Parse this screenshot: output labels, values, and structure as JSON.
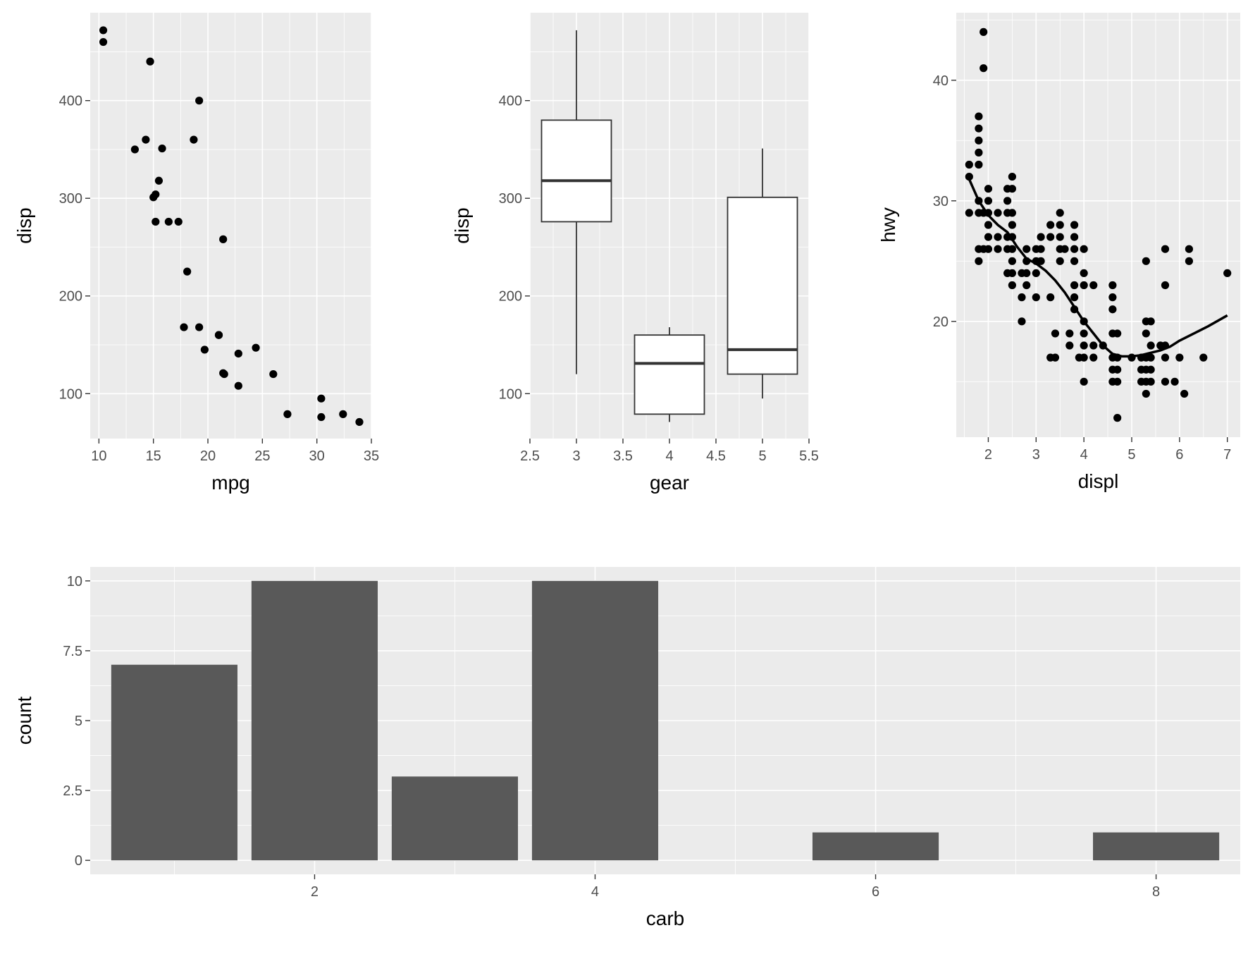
{
  "chart_data": [
    {
      "id": "p1",
      "type": "scatter",
      "title": "",
      "xlabel": "mpg",
      "ylabel": "disp",
      "xlim": [
        9.2,
        35.0
      ],
      "ylim": [
        54,
        490
      ],
      "xticks": [
        10,
        15,
        20,
        25,
        30,
        35
      ],
      "xtick_labels": [
        "10",
        "15",
        "20",
        "25",
        "30",
        "35"
      ],
      "yticks": [
        100,
        200,
        300,
        400
      ],
      "ytick_labels": [
        "100",
        "200",
        "300",
        "400"
      ],
      "grid": true,
      "points": [
        {
          "x": 10.4,
          "y": 472
        },
        {
          "x": 10.4,
          "y": 460
        },
        {
          "x": 14.7,
          "y": 440
        },
        {
          "x": 19.2,
          "y": 400
        },
        {
          "x": 13.3,
          "y": 350
        },
        {
          "x": 15.8,
          "y": 351
        },
        {
          "x": 14.3,
          "y": 360
        },
        {
          "x": 18.7,
          "y": 360
        },
        {
          "x": 15.5,
          "y": 318
        },
        {
          "x": 15.2,
          "y": 304
        },
        {
          "x": 15.0,
          "y": 301
        },
        {
          "x": 15.2,
          "y": 276
        },
        {
          "x": 16.4,
          "y": 276
        },
        {
          "x": 17.3,
          "y": 276
        },
        {
          "x": 21.4,
          "y": 258
        },
        {
          "x": 18.1,
          "y": 225
        },
        {
          "x": 17.8,
          "y": 168
        },
        {
          "x": 19.2,
          "y": 168
        },
        {
          "x": 21.0,
          "y": 160
        },
        {
          "x": 21.0,
          "y": 160
        },
        {
          "x": 19.7,
          "y": 145
        },
        {
          "x": 22.8,
          "y": 141
        },
        {
          "x": 24.4,
          "y": 147
        },
        {
          "x": 21.4,
          "y": 121
        },
        {
          "x": 21.5,
          "y": 120
        },
        {
          "x": 26.0,
          "y": 120
        },
        {
          "x": 22.8,
          "y": 108
        },
        {
          "x": 30.4,
          "y": 95
        },
        {
          "x": 27.3,
          "y": 79
        },
        {
          "x": 32.4,
          "y": 79
        },
        {
          "x": 30.4,
          "y": 76
        },
        {
          "x": 33.9,
          "y": 71
        }
      ]
    },
    {
      "id": "p2",
      "type": "box",
      "title": "",
      "xlabel": "gear",
      "ylabel": "disp",
      "xlim": [
        2.5,
        5.5
      ],
      "ylim": [
        54,
        490
      ],
      "xticks": [
        2.5,
        3,
        3.5,
        4,
        4.5,
        5,
        5.5
      ],
      "xtick_labels": [
        "2.5",
        "3",
        "3.5",
        "4",
        "4.5",
        "5",
        "5.5"
      ],
      "yticks": [
        100,
        200,
        300,
        400
      ],
      "ytick_labels": [
        "100",
        "200",
        "300",
        "400"
      ],
      "grid": true,
      "boxes": [
        {
          "x": 3,
          "width": 0.75,
          "min": 120,
          "q1": 276,
          "median": 318,
          "q3": 380,
          "max": 472
        },
        {
          "x": 4,
          "width": 0.75,
          "min": 71,
          "q1": 79,
          "median": 131,
          "q3": 160,
          "max": 168
        },
        {
          "x": 5,
          "width": 0.75,
          "min": 95,
          "q1": 120,
          "median": 145,
          "q3": 301,
          "max": 351
        }
      ]
    },
    {
      "id": "p3",
      "type": "scatter",
      "title": "",
      "xlabel": "displ",
      "ylabel": "hwy",
      "xlim": [
        1.33,
        7.27
      ],
      "ylim": [
        10.4,
        45.6
      ],
      "xticks": [
        2,
        3,
        4,
        5,
        6,
        7
      ],
      "xtick_labels": [
        "2",
        "3",
        "4",
        "5",
        "6",
        "7"
      ],
      "yticks": [
        20,
        30,
        40
      ],
      "ytick_labels": [
        "20",
        "30",
        "40"
      ],
      "grid": true,
      "points": [
        {
          "x": 1.6,
          "y": 33
        },
        {
          "x": 1.6,
          "y": 32
        },
        {
          "x": 1.6,
          "y": 29
        },
        {
          "x": 1.8,
          "y": 37
        },
        {
          "x": 1.8,
          "y": 36
        },
        {
          "x": 1.8,
          "y": 35
        },
        {
          "x": 1.8,
          "y": 34
        },
        {
          "x": 1.8,
          "y": 33
        },
        {
          "x": 1.8,
          "y": 30
        },
        {
          "x": 1.8,
          "y": 29
        },
        {
          "x": 1.8,
          "y": 26
        },
        {
          "x": 1.8,
          "y": 25
        },
        {
          "x": 1.9,
          "y": 44
        },
        {
          "x": 1.9,
          "y": 41
        },
        {
          "x": 1.9,
          "y": 29
        },
        {
          "x": 1.9,
          "y": 26
        },
        {
          "x": 2.0,
          "y": 31
        },
        {
          "x": 2.0,
          "y": 30
        },
        {
          "x": 2.0,
          "y": 29
        },
        {
          "x": 2.0,
          "y": 28
        },
        {
          "x": 2.0,
          "y": 27
        },
        {
          "x": 2.0,
          "y": 26
        },
        {
          "x": 2.2,
          "y": 29
        },
        {
          "x": 2.2,
          "y": 27
        },
        {
          "x": 2.2,
          "y": 26
        },
        {
          "x": 2.4,
          "y": 31
        },
        {
          "x": 2.4,
          "y": 30
        },
        {
          "x": 2.4,
          "y": 29
        },
        {
          "x": 2.4,
          "y": 27
        },
        {
          "x": 2.4,
          "y": 26
        },
        {
          "x": 2.4,
          "y": 24
        },
        {
          "x": 2.5,
          "y": 32
        },
        {
          "x": 2.5,
          "y": 31
        },
        {
          "x": 2.5,
          "y": 29
        },
        {
          "x": 2.5,
          "y": 28
        },
        {
          "x": 2.5,
          "y": 27
        },
        {
          "x": 2.5,
          "y": 26
        },
        {
          "x": 2.5,
          "y": 25
        },
        {
          "x": 2.5,
          "y": 24
        },
        {
          "x": 2.5,
          "y": 23
        },
        {
          "x": 2.7,
          "y": 24
        },
        {
          "x": 2.7,
          "y": 22
        },
        {
          "x": 2.7,
          "y": 20
        },
        {
          "x": 2.8,
          "y": 26
        },
        {
          "x": 2.8,
          "y": 25
        },
        {
          "x": 2.8,
          "y": 24
        },
        {
          "x": 2.8,
          "y": 23
        },
        {
          "x": 3.0,
          "y": 26
        },
        {
          "x": 3.0,
          "y": 25
        },
        {
          "x": 3.0,
          "y": 24
        },
        {
          "x": 3.0,
          "y": 22
        },
        {
          "x": 3.1,
          "y": 27
        },
        {
          "x": 3.1,
          "y": 26
        },
        {
          "x": 3.1,
          "y": 25
        },
        {
          "x": 3.3,
          "y": 28
        },
        {
          "x": 3.3,
          "y": 27
        },
        {
          "x": 3.3,
          "y": 22
        },
        {
          "x": 3.3,
          "y": 17
        },
        {
          "x": 3.4,
          "y": 19
        },
        {
          "x": 3.4,
          "y": 17
        },
        {
          "x": 3.5,
          "y": 29
        },
        {
          "x": 3.5,
          "y": 28
        },
        {
          "x": 3.5,
          "y": 27
        },
        {
          "x": 3.5,
          "y": 26
        },
        {
          "x": 3.5,
          "y": 25
        },
        {
          "x": 3.6,
          "y": 26
        },
        {
          "x": 3.7,
          "y": 19
        },
        {
          "x": 3.7,
          "y": 18
        },
        {
          "x": 3.8,
          "y": 28
        },
        {
          "x": 3.8,
          "y": 27
        },
        {
          "x": 3.8,
          "y": 26
        },
        {
          "x": 3.8,
          "y": 25
        },
        {
          "x": 3.8,
          "y": 23
        },
        {
          "x": 3.8,
          "y": 22
        },
        {
          "x": 3.8,
          "y": 21
        },
        {
          "x": 3.9,
          "y": 17
        },
        {
          "x": 4.0,
          "y": 26
        },
        {
          "x": 4.0,
          "y": 24
        },
        {
          "x": 4.0,
          "y": 23
        },
        {
          "x": 4.0,
          "y": 20
        },
        {
          "x": 4.0,
          "y": 19
        },
        {
          "x": 4.0,
          "y": 18
        },
        {
          "x": 4.0,
          "y": 17
        },
        {
          "x": 4.0,
          "y": 15
        },
        {
          "x": 4.2,
          "y": 23
        },
        {
          "x": 4.2,
          "y": 18
        },
        {
          "x": 4.2,
          "y": 17
        },
        {
          "x": 4.4,
          "y": 18
        },
        {
          "x": 4.6,
          "y": 23
        },
        {
          "x": 4.6,
          "y": 22
        },
        {
          "x": 4.6,
          "y": 21
        },
        {
          "x": 4.6,
          "y": 19
        },
        {
          "x": 4.6,
          "y": 17
        },
        {
          "x": 4.6,
          "y": 16
        },
        {
          "x": 4.6,
          "y": 15
        },
        {
          "x": 4.7,
          "y": 19
        },
        {
          "x": 4.7,
          "y": 17
        },
        {
          "x": 4.7,
          "y": 16
        },
        {
          "x": 4.7,
          "y": 15
        },
        {
          "x": 4.7,
          "y": 12
        },
        {
          "x": 5.0,
          "y": 17
        },
        {
          "x": 5.2,
          "y": 17
        },
        {
          "x": 5.2,
          "y": 16
        },
        {
          "x": 5.2,
          "y": 15
        },
        {
          "x": 5.3,
          "y": 25
        },
        {
          "x": 5.3,
          "y": 20
        },
        {
          "x": 5.3,
          "y": 19
        },
        {
          "x": 5.3,
          "y": 17
        },
        {
          "x": 5.3,
          "y": 16
        },
        {
          "x": 5.3,
          "y": 15
        },
        {
          "x": 5.3,
          "y": 14
        },
        {
          "x": 5.4,
          "y": 20
        },
        {
          "x": 5.4,
          "y": 18
        },
        {
          "x": 5.4,
          "y": 17
        },
        {
          "x": 5.4,
          "y": 16
        },
        {
          "x": 5.4,
          "y": 15
        },
        {
          "x": 5.6,
          "y": 18
        },
        {
          "x": 5.7,
          "y": 26
        },
        {
          "x": 5.7,
          "y": 23
        },
        {
          "x": 5.7,
          "y": 18
        },
        {
          "x": 5.7,
          "y": 17
        },
        {
          "x": 5.7,
          "y": 15
        },
        {
          "x": 5.9,
          "y": 15
        },
        {
          "x": 6.0,
          "y": 17
        },
        {
          "x": 6.1,
          "y": 14
        },
        {
          "x": 6.2,
          "y": 26
        },
        {
          "x": 6.2,
          "y": 25
        },
        {
          "x": 6.5,
          "y": 17
        },
        {
          "x": 7.0,
          "y": 24
        }
      ],
      "smooth": [
        {
          "x": 1.6,
          "y": 31.8
        },
        {
          "x": 1.8,
          "y": 30.0
        },
        {
          "x": 2.0,
          "y": 28.8
        },
        {
          "x": 2.2,
          "y": 28.0
        },
        {
          "x": 2.4,
          "y": 27.4
        },
        {
          "x": 2.6,
          "y": 26.2
        },
        {
          "x": 2.8,
          "y": 25.2
        },
        {
          "x": 3.0,
          "y": 24.8
        },
        {
          "x": 3.2,
          "y": 24.2
        },
        {
          "x": 3.4,
          "y": 23.4
        },
        {
          "x": 3.6,
          "y": 22.4
        },
        {
          "x": 3.8,
          "y": 21.2
        },
        {
          "x": 4.0,
          "y": 20.0
        },
        {
          "x": 4.2,
          "y": 19.0
        },
        {
          "x": 4.4,
          "y": 18.0
        },
        {
          "x": 4.6,
          "y": 17.3
        },
        {
          "x": 4.8,
          "y": 17.1
        },
        {
          "x": 5.0,
          "y": 17.1
        },
        {
          "x": 5.2,
          "y": 17.2
        },
        {
          "x": 5.4,
          "y": 17.4
        },
        {
          "x": 5.6,
          "y": 17.6
        },
        {
          "x": 5.8,
          "y": 17.9
        },
        {
          "x": 6.0,
          "y": 18.4
        },
        {
          "x": 6.3,
          "y": 19.0
        },
        {
          "x": 6.6,
          "y": 19.6
        },
        {
          "x": 7.0,
          "y": 20.5
        }
      ]
    },
    {
      "id": "p4",
      "type": "bar",
      "title": "",
      "xlabel": "carb",
      "ylabel": "count",
      "xlim": [
        0.4,
        8.6
      ],
      "ylim": [
        -0.5,
        10.5
      ],
      "xticks": [
        2,
        4,
        6,
        8
      ],
      "xtick_labels": [
        "2",
        "4",
        "6",
        "8"
      ],
      "yticks": [
        0,
        2.5,
        5,
        7.5,
        10
      ],
      "ytick_labels": [
        "0",
        "2.5",
        "5",
        "7.5",
        "10"
      ],
      "grid": true,
      "bar_width": 0.9,
      "bars": [
        {
          "x": 1,
          "value": 7
        },
        {
          "x": 2,
          "value": 10
        },
        {
          "x": 3,
          "value": 3
        },
        {
          "x": 4,
          "value": 10
        },
        {
          "x": 6,
          "value": 1
        },
        {
          "x": 8,
          "value": 1
        }
      ]
    }
  ]
}
